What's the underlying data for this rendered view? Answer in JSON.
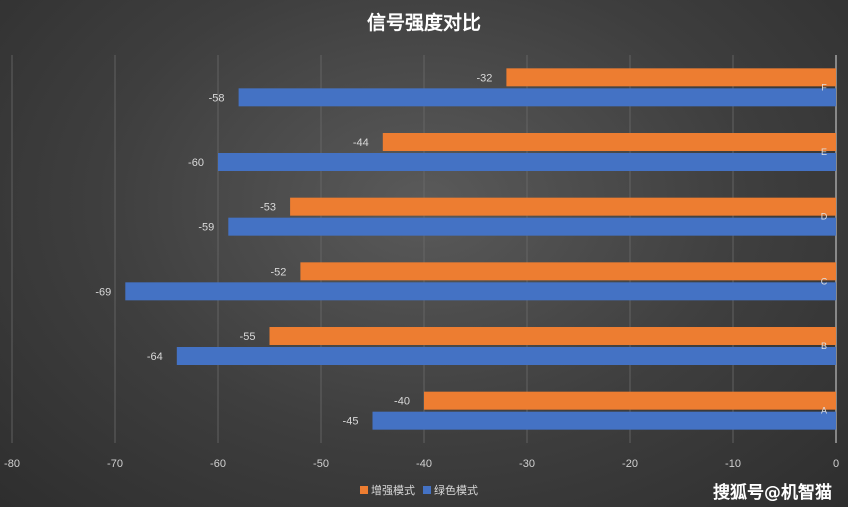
{
  "chart_data": {
    "type": "bar",
    "orientation": "horizontal",
    "title": "信号强度对比",
    "categories": [
      "A",
      "B",
      "C",
      "D",
      "E",
      "F"
    ],
    "series": [
      {
        "name": "增强模式",
        "color": "#ed7d31",
        "values": [
          -40,
          -55,
          -52,
          -53,
          -44,
          -32
        ]
      },
      {
        "name": "绿色模式",
        "color": "#4472c4",
        "values": [
          -45,
          -64,
          -69,
          -59,
          -60,
          -58
        ]
      }
    ],
    "x_ticks": [
      "-80",
      "-70",
      "-60",
      "-50",
      "-40",
      "-30",
      "-20",
      "-10",
      "0"
    ],
    "xlim": [
      -80,
      0
    ],
    "grid": true,
    "legend_position": "bottom"
  },
  "watermark": "搜狐号@机智猫"
}
